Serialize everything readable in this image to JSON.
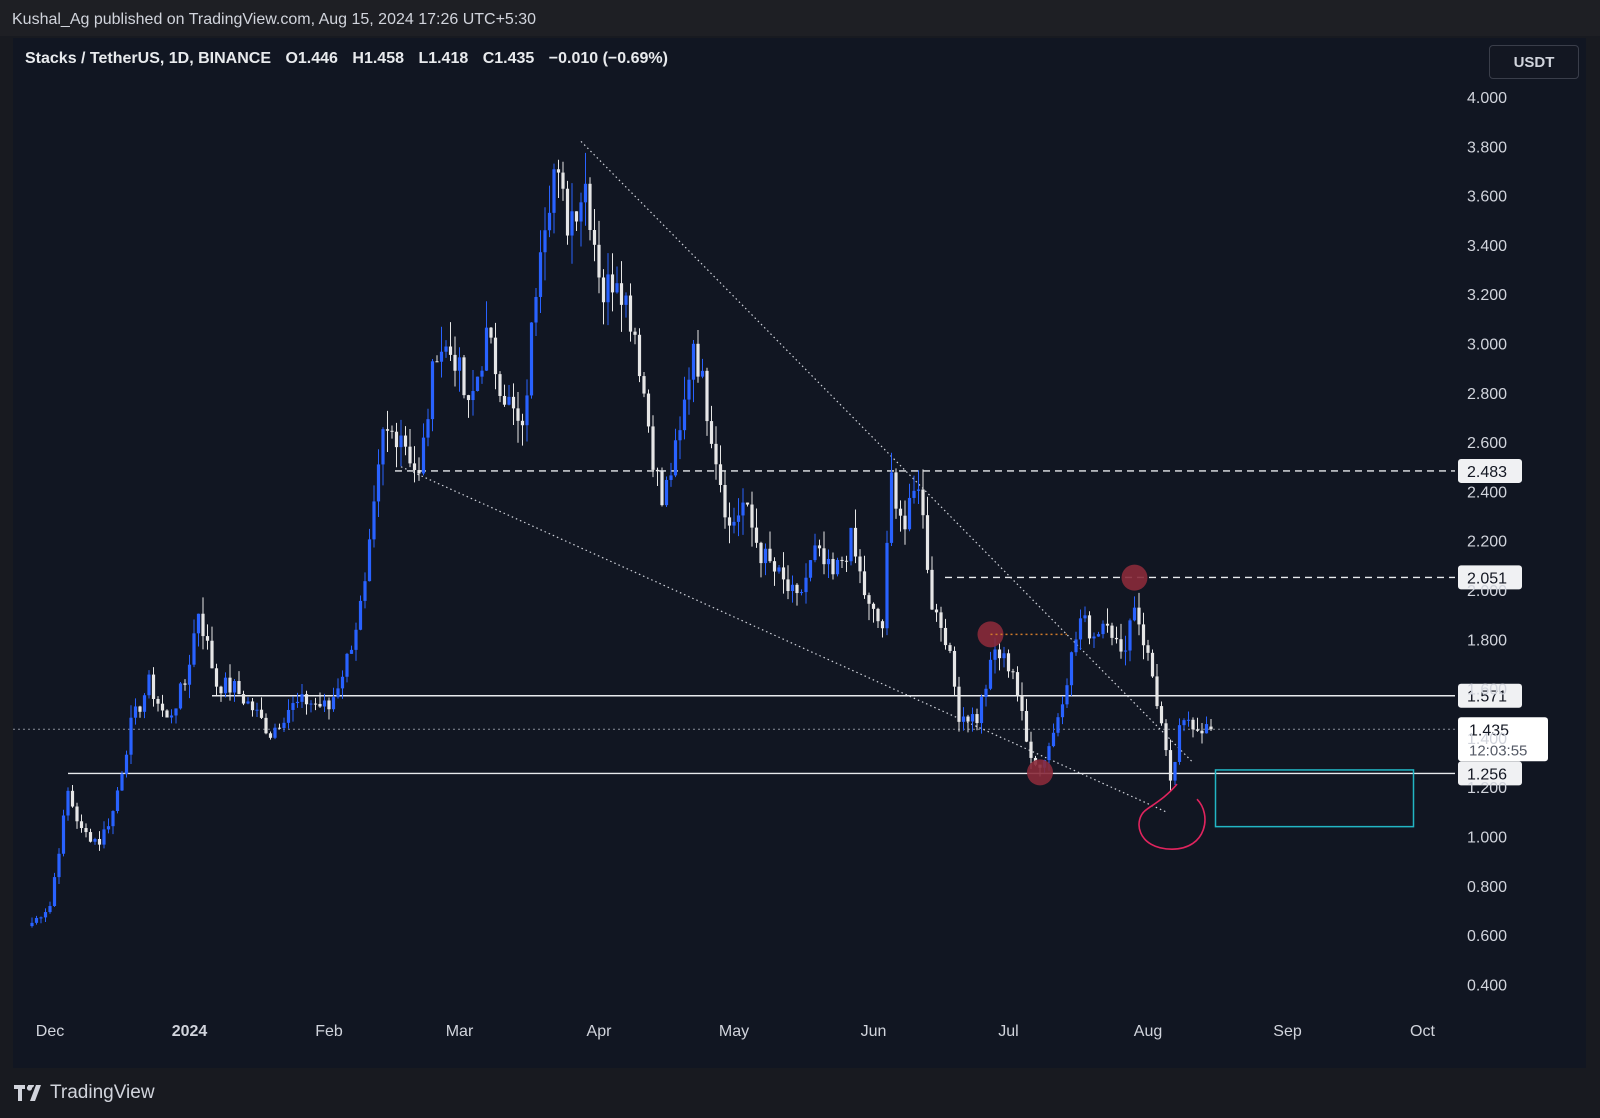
{
  "header": {
    "published_text": "Kushal_Ag published on TradingView.com, Aug 15, 2024 17:26 UTC+5:30"
  },
  "symbol": {
    "name": "Stacks / TetherUS, 1D, BINANCE",
    "open": "O1.446",
    "high": "H1.458",
    "low": "L1.418",
    "close": "C1.435",
    "change": "−0.010 (−0.69%)"
  },
  "currency_button": "USDT",
  "footer": {
    "brand": "TradingView"
  },
  "colors": {
    "background": "#111622",
    "bull": "#2962ff",
    "bear": "#e6e6e6",
    "marker": "#8a2a3a",
    "box": "#22b5c4",
    "circle": "#e0245e"
  },
  "chart_data": {
    "type": "candlestick",
    "title": "Stacks / TetherUS, 1D, BINANCE",
    "x_ticks": [
      "Dec",
      "2024",
      "Feb",
      "Mar",
      "Apr",
      "May",
      "Jun",
      "Jul",
      "Aug",
      "Sep",
      "Oct"
    ],
    "y_ticks": [
      "4.000",
      "3.800",
      "3.600",
      "3.400",
      "3.200",
      "3.000",
      "2.800",
      "2.600",
      "2.400",
      "2.200",
      "2.000",
      "1.800",
      "1.600",
      "1.400",
      "1.200",
      "1.000",
      "0.800",
      "0.600",
      "0.400"
    ],
    "ylim": [
      0.4,
      4.0
    ],
    "last_price": {
      "label": "1.435",
      "countdown": "12:03:55"
    },
    "levels": [
      {
        "value": 2.483,
        "label": "2.483",
        "style": "dashed"
      },
      {
        "value": 2.051,
        "label": "2.051",
        "style": "dashed"
      },
      {
        "value": 1.571,
        "label": "1.571",
        "style": "solid"
      },
      {
        "value": 1.256,
        "label": "1.256",
        "style": "solid"
      }
    ],
    "series": [
      {
        "name": "STXUSDT",
        "keypoints": [
          [
            "2023-11-27",
            0.65
          ],
          [
            "2023-12-01",
            0.72
          ],
          [
            "2023-12-05",
            1.18
          ],
          [
            "2023-12-08",
            1.02
          ],
          [
            "2023-12-12",
            0.98
          ],
          [
            "2023-12-15",
            1.1
          ],
          [
            "2023-12-19",
            1.45
          ],
          [
            "2023-12-23",
            1.62
          ],
          [
            "2023-12-27",
            1.47
          ],
          [
            "2023-12-31",
            1.62
          ],
          [
            "2024-01-03",
            1.92
          ],
          [
            "2024-01-07",
            1.62
          ],
          [
            "2024-01-11",
            1.6
          ],
          [
            "2024-01-15",
            1.52
          ],
          [
            "2024-01-19",
            1.42
          ],
          [
            "2024-01-23",
            1.52
          ],
          [
            "2024-01-27",
            1.55
          ],
          [
            "2024-02-01",
            1.52
          ],
          [
            "2024-02-05",
            1.72
          ],
          [
            "2024-02-09",
            2.0
          ],
          [
            "2024-02-13",
            2.62
          ],
          [
            "2024-02-17",
            2.65
          ],
          [
            "2024-02-21",
            2.45
          ],
          [
            "2024-02-25",
            3.0
          ],
          [
            "2024-02-29",
            2.95
          ],
          [
            "2024-03-03",
            2.72
          ],
          [
            "2024-03-07",
            3.02
          ],
          [
            "2024-03-11",
            2.8
          ],
          [
            "2024-03-15",
            2.62
          ],
          [
            "2024-03-19",
            3.45
          ],
          [
            "2024-03-22",
            3.7
          ],
          [
            "2024-03-25",
            3.5
          ],
          [
            "2024-03-29",
            3.65
          ],
          [
            "2024-04-02",
            3.2
          ],
          [
            "2024-04-05",
            3.3
          ],
          [
            "2024-04-09",
            3.05
          ],
          [
            "2024-04-13",
            2.55
          ],
          [
            "2024-04-15",
            2.35
          ],
          [
            "2024-04-19",
            2.62
          ],
          [
            "2024-04-22",
            3.02
          ],
          [
            "2024-04-26",
            2.65
          ],
          [
            "2024-04-30",
            2.25
          ],
          [
            "2024-05-03",
            2.35
          ],
          [
            "2024-05-07",
            2.15
          ],
          [
            "2024-05-11",
            2.05
          ],
          [
            "2024-05-15",
            1.95
          ],
          [
            "2024-05-19",
            2.15
          ],
          [
            "2024-05-23",
            2.05
          ],
          [
            "2024-05-27",
            2.2
          ],
          [
            "2024-05-31",
            1.92
          ],
          [
            "2024-06-03",
            1.85
          ],
          [
            "2024-06-05",
            2.45
          ],
          [
            "2024-06-08",
            2.25
          ],
          [
            "2024-06-11",
            2.45
          ],
          [
            "2024-06-14",
            1.95
          ],
          [
            "2024-06-17",
            1.82
          ],
          [
            "2024-06-20",
            1.5
          ],
          [
            "2024-06-24",
            1.48
          ],
          [
            "2024-06-28",
            1.75
          ],
          [
            "2024-07-02",
            1.68
          ],
          [
            "2024-07-05",
            1.38
          ],
          [
            "2024-07-08",
            1.28
          ],
          [
            "2024-07-11",
            1.42
          ],
          [
            "2024-07-14",
            1.65
          ],
          [
            "2024-07-17",
            1.88
          ],
          [
            "2024-07-20",
            1.82
          ],
          [
            "2024-07-23",
            1.9
          ],
          [
            "2024-07-26",
            1.72
          ],
          [
            "2024-07-29",
            1.95
          ],
          [
            "2024-08-02",
            1.65
          ],
          [
            "2024-08-04",
            1.45
          ],
          [
            "2024-08-06",
            1.2
          ],
          [
            "2024-08-08",
            1.42
          ],
          [
            "2024-08-10",
            1.48
          ],
          [
            "2024-08-12",
            1.45
          ],
          [
            "2024-08-15",
            1.435
          ]
        ]
      }
    ],
    "annotations": [
      {
        "type": "trendline",
        "style": "dotted",
        "from": [
          "2024-03-28",
          3.82
        ],
        "to": [
          "2024-08-11",
          1.3
        ]
      },
      {
        "type": "trendline",
        "style": "dotted",
        "from": [
          "2024-02-17",
          2.5
        ],
        "to": [
          "2024-08-05",
          1.1
        ]
      },
      {
        "type": "marker",
        "at": [
          "2024-06-27",
          1.82
        ]
      },
      {
        "type": "marker",
        "at": [
          "2024-07-08",
          1.26
        ]
      },
      {
        "type": "marker",
        "at": [
          "2024-07-29",
          2.05
        ]
      },
      {
        "type": "short-line",
        "style": "dotted",
        "color": "orange",
        "from": [
          "2024-06-27",
          1.82
        ],
        "to": [
          "2024-07-14",
          1.82
        ]
      },
      {
        "type": "box",
        "from": [
          "2024-08-16",
          1.27
        ],
        "to": [
          "2024-09-29",
          1.04
        ]
      },
      {
        "type": "freehand-circle",
        "at": [
          "2024-08-05",
          1.05
        ]
      }
    ]
  }
}
